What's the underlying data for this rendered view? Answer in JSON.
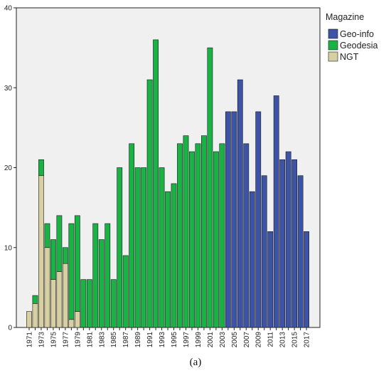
{
  "chart_data": {
    "type": "bar",
    "stacked": true,
    "x": [
      1971,
      1972,
      1973,
      1974,
      1975,
      1976,
      1977,
      1978,
      1979,
      1980,
      1981,
      1982,
      1983,
      1984,
      1985,
      1986,
      1987,
      1988,
      1989,
      1990,
      1991,
      1992,
      1993,
      1994,
      1995,
      1996,
      1997,
      1998,
      1999,
      2000,
      2001,
      2002,
      2003,
      2004,
      2005,
      2006,
      2007,
      2008,
      2009,
      2010,
      2011,
      2012,
      2013,
      2014,
      2015,
      2016,
      2017
    ],
    "xticks": [
      "1971",
      "1973",
      "1975",
      "1977",
      "1979",
      "1981",
      "1983",
      "1985",
      "1987",
      "1989",
      "1991",
      "1993",
      "1995",
      "1997",
      "1999",
      "2001",
      "2003",
      "2005",
      "2007",
      "2009",
      "2011",
      "2013",
      "2015",
      "2017"
    ],
    "ylim": [
      0,
      40
    ],
    "yticks": [
      0,
      10,
      20,
      30,
      40
    ],
    "grid": false,
    "legend": {
      "title": "Magazine",
      "position": "top-right"
    },
    "series": [
      {
        "name": "NGT",
        "color": "#d8cfa3",
        "values": [
          2,
          3,
          19,
          10,
          6,
          7,
          8,
          1,
          2,
          0,
          0,
          0,
          0,
          0,
          0,
          0,
          0,
          0,
          0,
          0,
          0,
          0,
          0,
          0,
          0,
          0,
          0,
          0,
          0,
          0,
          0,
          0,
          0,
          0,
          0,
          0,
          0,
          0,
          0,
          0,
          0,
          0,
          0,
          0,
          0,
          0,
          0
        ]
      },
      {
        "name": "Geodesia",
        "color": "#19b244",
        "values": [
          0,
          1,
          2,
          3,
          5,
          7,
          2,
          12,
          12,
          6,
          6,
          13,
          11,
          13,
          6,
          20,
          9,
          23,
          20,
          20,
          31,
          36,
          20,
          17,
          18,
          23,
          24,
          22,
          23,
          24,
          35,
          22,
          23,
          0,
          0,
          0,
          0,
          0,
          0,
          0,
          0,
          0,
          0,
          0,
          0,
          0,
          0
        ]
      },
      {
        "name": "Geo-info",
        "color": "#3c53a6",
        "values": [
          0,
          0,
          0,
          0,
          0,
          0,
          0,
          0,
          0,
          0,
          0,
          0,
          0,
          0,
          0,
          0,
          0,
          0,
          0,
          0,
          0,
          0,
          0,
          0,
          0,
          0,
          0,
          0,
          0,
          0,
          0,
          0,
          0,
          27,
          27,
          31,
          23,
          17,
          27,
          19,
          12,
          29,
          21,
          22,
          21,
          19,
          12
        ]
      }
    ],
    "legend_order": [
      "Geo-info",
      "Geodesia",
      "NGT"
    ]
  },
  "caption": "(a)"
}
